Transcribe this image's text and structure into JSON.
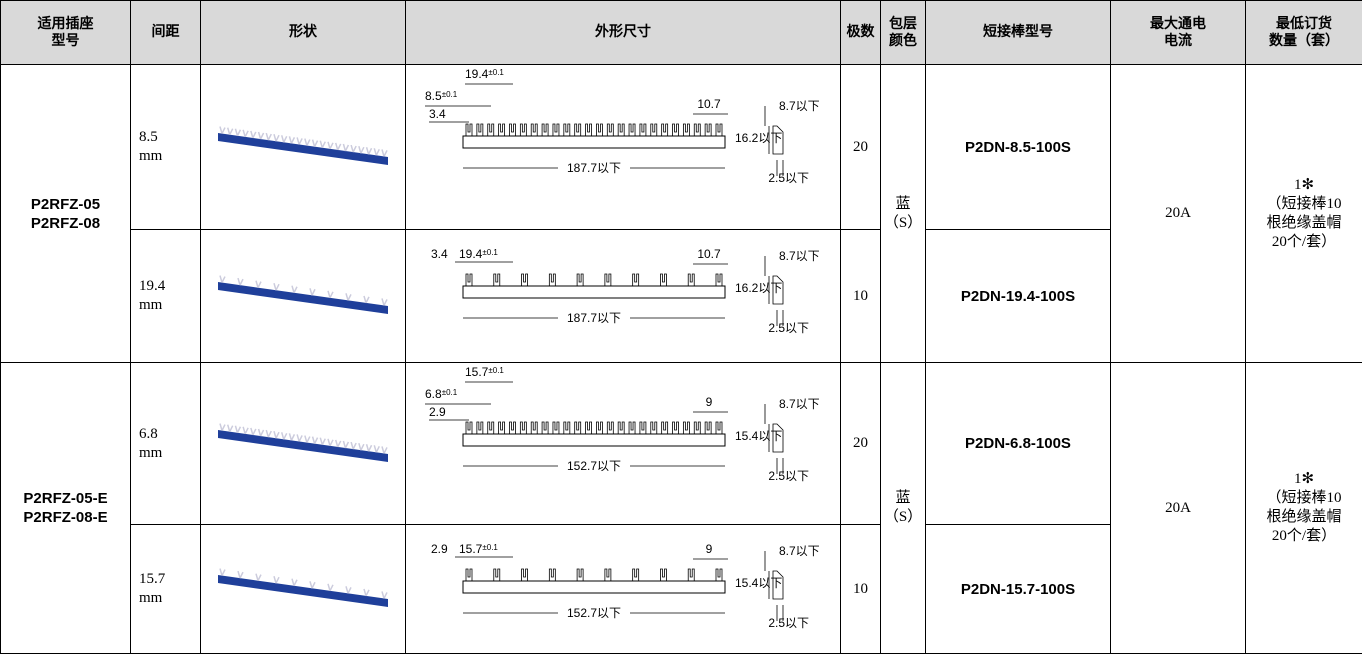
{
  "header": [
    [
      "适用插座",
      "型号"
    ],
    [
      "间距"
    ],
    [
      "形状"
    ],
    [
      "外形尺寸"
    ],
    [
      "极数"
    ],
    [
      "包层",
      "颜色"
    ],
    [
      "短接棒型号"
    ],
    [
      "最大通电",
      "电流"
    ],
    [
      "最低订货",
      "数量（套）"
    ]
  ],
  "groups": [
    {
      "socket": [
        "P2RFZ-05",
        "P2RFZ-08"
      ],
      "color": [
        "蓝",
        "（S）"
      ],
      "current": "20A",
      "moq": [
        "1✻",
        "（短接棒10",
        "根绝缘盖帽",
        "20个/套）"
      ],
      "rows": [
        {
          "pitch": [
            "8.5",
            "mm"
          ],
          "poles": "20",
          "model": "P2DN-8.5-100S",
          "dims": {
            "pitch": "19.4",
            "pitch_tol": "±0.1",
            "spacing": "8.5",
            "spacing_tol": "±0.1",
            "offset": "3.4",
            "end": "10.7",
            "height": "8.7以下",
            "depth": "16.2以下",
            "length": "187.7以下",
            "thick": "2.5以下"
          }
        },
        {
          "pitch": [
            "19.4",
            "mm"
          ],
          "poles": "10",
          "model": "P2DN-19.4-100S",
          "dims": {
            "offset": "3.4",
            "pitch": "19.4",
            "pitch_tol": "±0.1",
            "end": "10.7",
            "height": "8.7以下",
            "depth": "16.2以下",
            "length": "187.7以下",
            "thick": "2.5以下"
          }
        }
      ]
    },
    {
      "socket": [
        "P2RFZ-05-E",
        "P2RFZ-08-E"
      ],
      "color": [
        "蓝",
        "（S）"
      ],
      "current": "20A",
      "moq": [
        "1✻",
        "（短接棒10",
        "根绝缘盖帽",
        "20个/套）"
      ],
      "rows": [
        {
          "pitch": [
            "6.8",
            "mm"
          ],
          "poles": "20",
          "model": "P2DN-6.8-100S",
          "dims": {
            "pitch": "15.7",
            "pitch_tol": "±0.1",
            "spacing": "6.8",
            "spacing_tol": "±0.1",
            "offset": "2.9",
            "end": "9",
            "height": "8.7以下",
            "depth": "15.4以下",
            "length": "152.7以下",
            "thick": "2.5以下"
          }
        },
        {
          "pitch": [
            "15.7",
            "mm"
          ],
          "poles": "10",
          "model": "P2DN-15.7-100S",
          "dims": {
            "offset": "2.9",
            "pitch": "15.7",
            "pitch_tol": "±0.1",
            "end": "9",
            "height": "8.7以下",
            "depth": "15.4以下",
            "length": "152.7以下",
            "thick": "2.5以下"
          }
        }
      ]
    }
  ]
}
